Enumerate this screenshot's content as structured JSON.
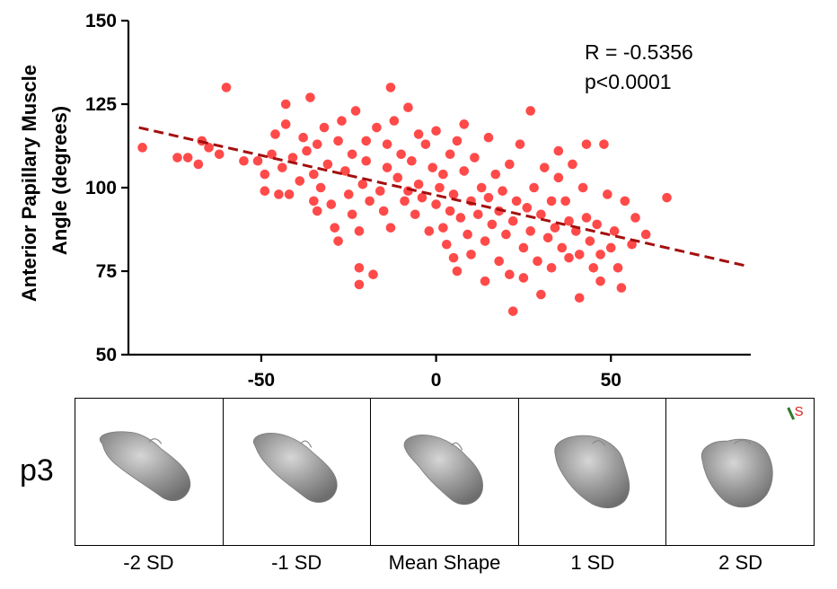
{
  "chart_data": {
    "type": "scatter",
    "ylabel_lines": [
      "Anterior Papillary Muscle",
      "Angle (degrees)"
    ],
    "xlabel": "",
    "xlim": [
      -88,
      90
    ],
    "ylim": [
      50,
      150
    ],
    "x_ticks": [
      -50,
      0,
      50
    ],
    "y_ticks": [
      50,
      75,
      100,
      125,
      150
    ],
    "annotation": [
      "R = -0.5356",
      "p<0.0001"
    ],
    "point_color": "#ff2a2a",
    "trendline": {
      "x": [
        -85,
        89
      ],
      "y": [
        118,
        76.5
      ],
      "color": "#a50e0e",
      "style": "dashed"
    },
    "points": [
      [
        -84,
        112
      ],
      [
        -74,
        109
      ],
      [
        -71,
        109
      ],
      [
        -68,
        107
      ],
      [
        -67,
        114
      ],
      [
        -65,
        112
      ],
      [
        -62,
        110
      ],
      [
        -60,
        130
      ],
      [
        -55,
        108
      ],
      [
        -51,
        108
      ],
      [
        -49,
        104
      ],
      [
        -49,
        99
      ],
      [
        -47,
        110
      ],
      [
        -46,
        116
      ],
      [
        -45,
        98
      ],
      [
        -44,
        106
      ],
      [
        -43,
        125
      ],
      [
        -43,
        119
      ],
      [
        -42,
        98
      ],
      [
        -41,
        109
      ],
      [
        -39,
        102
      ],
      [
        -38,
        115
      ],
      [
        -37,
        111
      ],
      [
        -36,
        127
      ],
      [
        -35,
        96
      ],
      [
        -35,
        104
      ],
      [
        -34,
        113
      ],
      [
        -34,
        93
      ],
      [
        -33,
        100
      ],
      [
        -32,
        118
      ],
      [
        -31,
        107
      ],
      [
        -30,
        95
      ],
      [
        -29,
        88
      ],
      [
        -28,
        114
      ],
      [
        -28,
        84
      ],
      [
        -27,
        120
      ],
      [
        -26,
        105
      ],
      [
        -25,
        98
      ],
      [
        -24,
        110
      ],
      [
        -24,
        92
      ],
      [
        -23,
        123
      ],
      [
        -22,
        87
      ],
      [
        -22,
        71
      ],
      [
        -22,
        76
      ],
      [
        -21,
        101
      ],
      [
        -20,
        114
      ],
      [
        -20,
        108
      ],
      [
        -19,
        96
      ],
      [
        -18,
        74
      ],
      [
        -17,
        118
      ],
      [
        -16,
        99
      ],
      [
        -15,
        93
      ],
      [
        -14,
        106
      ],
      [
        -14,
        113
      ],
      [
        -13,
        88
      ],
      [
        -13,
        130
      ],
      [
        -12,
        120
      ],
      [
        -11,
        103
      ],
      [
        -10,
        110
      ],
      [
        -9,
        96
      ],
      [
        -8,
        124
      ],
      [
        -8,
        99
      ],
      [
        -7,
        108
      ],
      [
        -6,
        92
      ],
      [
        -5,
        116
      ],
      [
        -5,
        101
      ],
      [
        -4,
        97
      ],
      [
        -3,
        113
      ],
      [
        -2,
        87
      ],
      [
        -1,
        106
      ],
      [
        0,
        95
      ],
      [
        0,
        117
      ],
      [
        1,
        100
      ],
      [
        2,
        88
      ],
      [
        2,
        104
      ],
      [
        3,
        83
      ],
      [
        4,
        110
      ],
      [
        4,
        93
      ],
      [
        5,
        79
      ],
      [
        5,
        98
      ],
      [
        6,
        114
      ],
      [
        6,
        75
      ],
      [
        7,
        91
      ],
      [
        8,
        105
      ],
      [
        8,
        119
      ],
      [
        9,
        86
      ],
      [
        10,
        96
      ],
      [
        10,
        80
      ],
      [
        11,
        109
      ],
      [
        12,
        92
      ],
      [
        13,
        100
      ],
      [
        14,
        84
      ],
      [
        14,
        72
      ],
      [
        15,
        97
      ],
      [
        15,
        115
      ],
      [
        16,
        89
      ],
      [
        17,
        104
      ],
      [
        18,
        78
      ],
      [
        18,
        93
      ],
      [
        19,
        99
      ],
      [
        20,
        86
      ],
      [
        21,
        107
      ],
      [
        21,
        74
      ],
      [
        22,
        63
      ],
      [
        22,
        90
      ],
      [
        23,
        96
      ],
      [
        24,
        113
      ],
      [
        25,
        82
      ],
      [
        25,
        73
      ],
      [
        26,
        94
      ],
      [
        27,
        123
      ],
      [
        27,
        87
      ],
      [
        28,
        100
      ],
      [
        29,
        78
      ],
      [
        30,
        92
      ],
      [
        30,
        68
      ],
      [
        31,
        106
      ],
      [
        32,
        85
      ],
      [
        33,
        96
      ],
      [
        33,
        76
      ],
      [
        34,
        88
      ],
      [
        35,
        103
      ],
      [
        35,
        111
      ],
      [
        36,
        82
      ],
      [
        37,
        96
      ],
      [
        38,
        90
      ],
      [
        38,
        79
      ],
      [
        39,
        107
      ],
      [
        40,
        87
      ],
      [
        41,
        67
      ],
      [
        41,
        80
      ],
      [
        42,
        100
      ],
      [
        43,
        91
      ],
      [
        43,
        113
      ],
      [
        44,
        84
      ],
      [
        45,
        76
      ],
      [
        46,
        89
      ],
      [
        47,
        80
      ],
      [
        47,
        72
      ],
      [
        48,
        113
      ],
      [
        49,
        98
      ],
      [
        50,
        82
      ],
      [
        51,
        87
      ],
      [
        52,
        76
      ],
      [
        53,
        70
      ],
      [
        54,
        96
      ],
      [
        56,
        83
      ],
      [
        57,
        91
      ],
      [
        60,
        86
      ],
      [
        66,
        97
      ]
    ]
  },
  "shape_row": {
    "label": "p3",
    "captions": [
      "-2 SD",
      "-1 SD",
      "Mean Shape",
      "1 SD",
      "2 SD"
    ],
    "orientation_marker": "S",
    "surface_color": "#9a9a9a",
    "marker_green": "#2d7a2d",
    "marker_red": "#e02020"
  }
}
